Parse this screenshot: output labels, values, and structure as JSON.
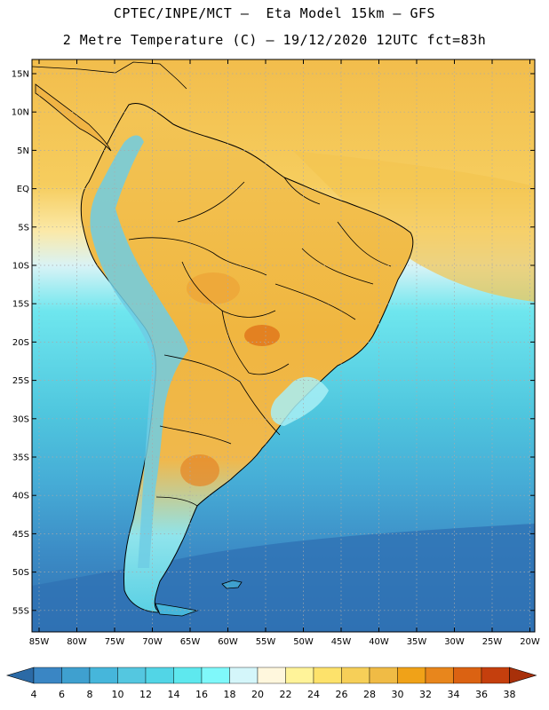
{
  "header": {
    "line1": "CPTEC/INPE/MCT –  Eta Model 15km – GFS",
    "line2": "2 Metre Temperature (C) – 19/12/2020 12UTC fct=83h"
  },
  "map": {
    "lat_ticks": [
      "15N",
      "10N",
      "5N",
      "EQ",
      "5S",
      "10S",
      "15S",
      "20S",
      "25S",
      "30S",
      "35S",
      "40S",
      "45S",
      "50S",
      "55S"
    ],
    "lon_ticks": [
      "85W",
      "80W",
      "75W",
      "70W",
      "65W",
      "60W",
      "55W",
      "50W",
      "45W",
      "40W",
      "35W",
      "30W",
      "25W",
      "20W"
    ],
    "colors": {
      "ocean_tropical": "#f4c04a",
      "continent": "#f0b84a",
      "ocean_south_deep": "#3b86c4",
      "grid": "#bbbbbb"
    }
  },
  "colorbar": {
    "labels": [
      "4",
      "6",
      "8",
      "10",
      "12",
      "14",
      "16",
      "18",
      "20",
      "22",
      "24",
      "26",
      "28",
      "30",
      "32",
      "34",
      "36",
      "38"
    ],
    "colors": [
      "#2b6aa6",
      "#3a86c4",
      "#3fa0cf",
      "#46b6db",
      "#54c7e0",
      "#52d5e6",
      "#5ee8ee",
      "#7ff8fa",
      "#d4f6fa",
      "#fff7dd",
      "#fff399",
      "#fde26b",
      "#f6cf58",
      "#f0bb45",
      "#f0a218",
      "#e8861c",
      "#db6212",
      "#c53f0d",
      "#a8300a"
    ]
  }
}
